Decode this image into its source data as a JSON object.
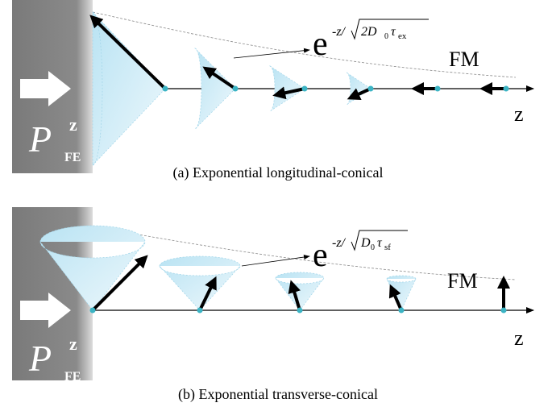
{
  "panels": [
    {
      "caption": "(a) Exponential longitudinal-conical",
      "polarization": {
        "symbol": "P",
        "sup": "z",
        "sub": "FE"
      },
      "label": "FM",
      "axis": "z",
      "decay": {
        "base": "e",
        "prefix": "-z/",
        "radicand": "2D",
        "radicand_sub": "0",
        "tau": "τ",
        "tau_sub": "ex"
      }
    },
    {
      "caption": "(b) Exponential transverse-conical",
      "polarization": {
        "symbol": "P",
        "sup": "z",
        "sub": "FE"
      },
      "label": "FM",
      "axis": "z",
      "decay": {
        "base": "e",
        "prefix": "-z/",
        "radicand": "D",
        "radicand_sub": "0",
        "tau": "τ",
        "tau_sub": "sf"
      }
    }
  ]
}
